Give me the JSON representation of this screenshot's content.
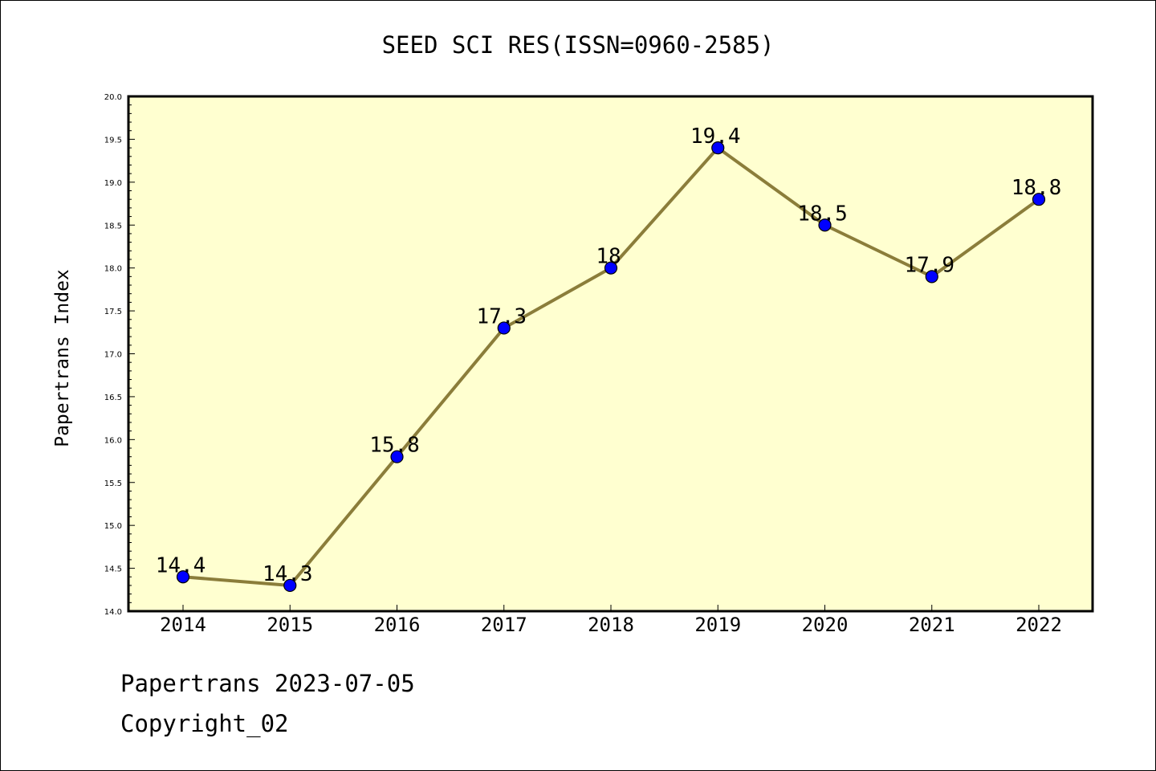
{
  "chart_data": {
    "type": "line",
    "title": "SEED SCI RES(ISSN=0960-2585)",
    "xlabel": "",
    "ylabel": "Papertrans Index",
    "categories": [
      "2014",
      "2015",
      "2016",
      "2017",
      "2018",
      "2019",
      "2020",
      "2021",
      "2022"
    ],
    "series": [
      {
        "values": [
          14.4,
          14.3,
          15.8,
          17.3,
          18,
          19.4,
          18.5,
          17.9,
          18.8
        ],
        "labels": [
          "14.4",
          "14.3",
          "15.8",
          "17.3",
          "18",
          "19.4",
          "18.5",
          "17.9",
          "18.8"
        ]
      }
    ],
    "ylim": [
      14.0,
      20.0
    ],
    "yticks": [
      "14.0",
      "14.5",
      "15.0",
      "15.5",
      "16.0",
      "16.5",
      "17.0",
      "17.5",
      "18.0",
      "18.5",
      "19.0",
      "19.5",
      "20.0"
    ],
    "grid": false,
    "colors": {
      "plot_bg": "#ffffd0",
      "line": "#8b7d3a",
      "marker": "#0000ff",
      "marker_edge": "#000000"
    }
  },
  "footer": {
    "line1": "Papertrans 2023-07-05",
    "line2": "Copyright_02"
  }
}
